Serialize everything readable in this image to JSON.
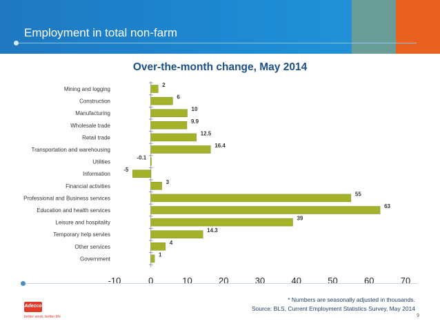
{
  "header": {
    "title": "Employment in total non-farm"
  },
  "chart_data": {
    "type": "bar",
    "orientation": "horizontal",
    "title": "Over-the-month change, May 2014",
    "categories": [
      "Mining and logging",
      "Construction",
      "Manufacturing",
      "Wholesale trade",
      "Retail trade",
      "Transportation and warehousing",
      "Utilities",
      "Information",
      "Financial activities",
      "Professional and Business services",
      "Education and health services",
      "Leisure and hospitality",
      "Temporary help servies",
      "Other services",
      "Government"
    ],
    "values": [
      2,
      6,
      10,
      9.9,
      12.5,
      16.4,
      -0.1,
      -5,
      3,
      55,
      63,
      39,
      14.3,
      4,
      1
    ],
    "data_labels": [
      "2",
      "6",
      "10",
      "9.9",
      "12.5",
      "16.4",
      "-0.1",
      "-5",
      "3",
      "55",
      "63",
      "39",
      "14.3",
      "4",
      "1"
    ],
    "xlim": [
      -10,
      70
    ],
    "x_ticks": [
      "-10",
      "0",
      "10",
      "20",
      "30",
      "40",
      "50",
      "60",
      "70"
    ],
    "xlabel": "",
    "ylabel": "",
    "grid": false,
    "bar_color": "#a3b229"
  },
  "footer": {
    "note": "* Numbers are seasonally adjusted in thousands.",
    "source": "Source: BLS, Current Employment Statistics Survey, May 2014",
    "page_number": "9"
  },
  "logo": {
    "brand": "Adecco",
    "tagline": "better work, better life"
  }
}
